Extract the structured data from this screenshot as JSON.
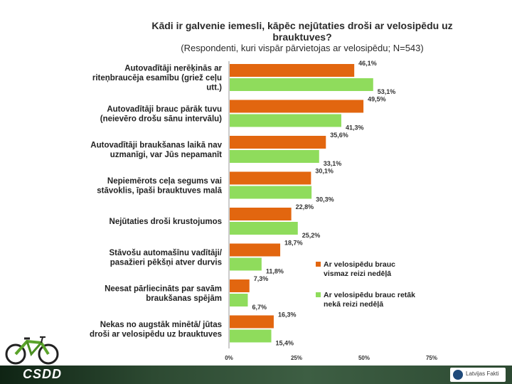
{
  "chart_data": {
    "type": "bar",
    "orientation": "horizontal",
    "title": "Kādi ir galvenie iemesli, kāpēc nejūtaties droši ar velosipēdu uz brauktuves?",
    "subtitle": "(Respondenti, kuri vispār pārvietojas ar velosipēdu; N=543)",
    "categories": [
      [
        "Autovadītāji nerēķinās ar",
        "riteņbraucēja esamību (griež ceļu",
        "utt.)"
      ],
      [
        "Autovadītāji brauc pārāk tuvu",
        "(neievēro drošu sānu intervālu)"
      ],
      [
        "Autovadītāji braukšanas laikā nav",
        "uzmanīgi, var Jūs nepamanīt"
      ],
      [
        "Nepiemērots ceļa segums vai",
        "stāvoklis, īpaši brauktuves malā"
      ],
      [
        "Nejūtaties droši krustojumos"
      ],
      [
        "Stāvošu automašīnu vadītāji/",
        "pasažieri pēkšņi atver durvis"
      ],
      [
        "Neesat pārliecināts par savām",
        "braukšanas spējām"
      ],
      [
        "Nekas no augstāk minētā/ jūtas",
        "droši ar velosipēdu uz brauktuves"
      ]
    ],
    "series": [
      {
        "name": "Ar velosipēdu brauc vismaz reizi nedēļā",
        "legend_lines": [
          "Ar velosipēdu brauc",
          "vismaz reizi nedēļā"
        ],
        "color": "#e2660f",
        "values": [
          46.1,
          49.5,
          35.6,
          30.1,
          22.8,
          18.7,
          7.3,
          16.3
        ],
        "labels": [
          "46,1%",
          "49,5%",
          "35,6%",
          "30,1%",
          "22,8%",
          "18,7%",
          "7,3%",
          "16,3%"
        ]
      },
      {
        "name": "Ar velosipēdu brauc retāk nekā reizi nedēļā",
        "legend_lines": [
          "Ar velosipēdu brauc retāk",
          "nekā  reizi nedēļā"
        ],
        "color": "#8fdc5c",
        "values": [
          53.1,
          41.3,
          33.1,
          30.3,
          25.2,
          11.8,
          6.7,
          15.4
        ],
        "labels": [
          "53,1%",
          "41,3%",
          "33,1%",
          "30,3%",
          "25,2%",
          "11,8%",
          "6,7%",
          "15,4%"
        ]
      }
    ],
    "xlim": [
      0,
      75
    ],
    "xticks": [
      0,
      25,
      50,
      75
    ],
    "xtick_labels": [
      "0%",
      "25%",
      "50%",
      "75%"
    ],
    "legend_position": "right"
  },
  "footer": {
    "logo": "CSDD",
    "brand": "Latvijas Fakti"
  }
}
